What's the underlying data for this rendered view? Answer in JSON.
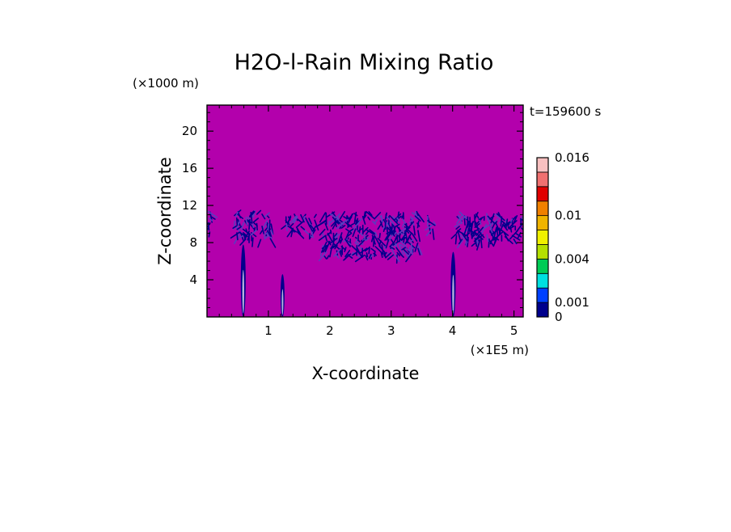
{
  "chart_data": {
    "type": "heatmap",
    "title": "H2O-l-Rain Mixing Ratio",
    "xlabel": "X-coordinate",
    "ylabel": "Z-coordinate",
    "x_unit": "(×1E5 m)",
    "y_unit": "(×1000 m)",
    "time_label": "t=159600 s",
    "xlim": [
      0,
      5.15
    ],
    "ylim": [
      0,
      22.8
    ],
    "x_ticks": [
      1,
      2,
      3,
      4,
      5
    ],
    "y_ticks": [
      4,
      8,
      12,
      16,
      20
    ],
    "background_color": "#b300ac",
    "colorbar": {
      "labels": [
        {
          "value": 0,
          "text": "0"
        },
        {
          "value": 0.001,
          "text": "0.001"
        },
        {
          "value": 0.004,
          "text": "0.004"
        },
        {
          "value": 0.01,
          "text": "0.01"
        },
        {
          "value": 0.016,
          "text": "0.016"
        }
      ],
      "levels": [
        {
          "from": 0,
          "to": 0.001,
          "color": "#00008c"
        },
        {
          "from": 0.001,
          "to": 0.002,
          "color": "#0040ff"
        },
        {
          "from": 0.002,
          "to": 0.003,
          "color": "#00e0e0"
        },
        {
          "from": 0.003,
          "to": 0.004,
          "color": "#00cc55"
        },
        {
          "from": 0.004,
          "to": 0.006,
          "color": "#b4e000"
        },
        {
          "from": 0.006,
          "to": 0.008,
          "color": "#f0f000"
        },
        {
          "from": 0.008,
          "to": 0.01,
          "color": "#f0b400"
        },
        {
          "from": 0.01,
          "to": 0.012,
          "color": "#f08000"
        },
        {
          "from": 0.012,
          "to": 0.014,
          "color": "#e00000"
        },
        {
          "from": 0.014,
          "to": 0.016,
          "color": "#f07070"
        },
        {
          "from": 0.016,
          "to": 0.018,
          "color": "#f8c0c0"
        }
      ]
    },
    "regions": [
      {
        "name": "upper-layer-left-edge",
        "x": [
          0.0,
          0.1
        ],
        "z": [
          8.5,
          12.0
        ]
      },
      {
        "name": "upper-layer-cell-1",
        "x": [
          0.45,
          1.05
        ],
        "z": [
          7.5,
          12.2
        ]
      },
      {
        "name": "upper-layer-cell-2",
        "x": [
          1.28,
          1.78
        ],
        "z": [
          8.5,
          11.5
        ]
      },
      {
        "name": "upper-layer-cell-3",
        "x": [
          1.88,
          3.45
        ],
        "z": [
          5.5,
          12.4
        ]
      },
      {
        "name": "upper-layer-cell-4",
        "x": [
          3.58,
          3.7
        ],
        "z": [
          9.0,
          11.5
        ]
      },
      {
        "name": "upper-layer-cell-5",
        "x": [
          4.05,
          5.15
        ],
        "z": [
          7.5,
          12.0
        ]
      },
      {
        "name": "rain-shaft-1",
        "x": [
          0.55,
          0.63
        ],
        "z": [
          0.0,
          7.8
        ]
      },
      {
        "name": "rain-shaft-2",
        "x": [
          1.2,
          1.26
        ],
        "z": [
          0.0,
          4.6
        ]
      },
      {
        "name": "rain-shaft-3",
        "x": [
          3.97,
          4.05
        ],
        "z": [
          0.0,
          7.0
        ]
      }
    ]
  }
}
